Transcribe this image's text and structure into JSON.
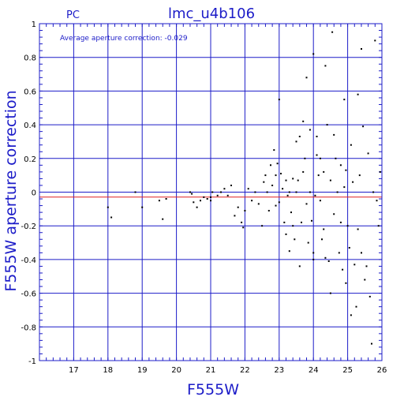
{
  "chart_data": {
    "type": "scatter",
    "title": "lmc_u4b106",
    "corner_label": "PC",
    "xlabel": "F555W",
    "ylabel": "F555W aperture correction",
    "annotation": "Average aperture correction: -0.029",
    "xlim": [
      16,
      26
    ],
    "ylim": [
      -1,
      1
    ],
    "x_ticks": [
      "17",
      "18",
      "19",
      "20",
      "21",
      "22",
      "23",
      "24",
      "25",
      "26"
    ],
    "y_ticks": [
      "1",
      "0.8",
      "0.6",
      "0.4",
      "0.2",
      "0",
      "-0.2",
      "-0.4",
      "-0.6",
      "-0.8",
      "-1"
    ],
    "grid": true,
    "reference_lines": [
      {
        "y": 0,
        "color": "#1c1cc8"
      },
      {
        "y": -0.029,
        "color": "#e02020"
      }
    ],
    "colors": {
      "grid": "#1c1cc8",
      "text": "#1c1cc8",
      "points": "#000000",
      "average_line": "#e02020"
    },
    "points": [
      [
        18.0,
        -0.09
      ],
      [
        18.1,
        -0.15
      ],
      [
        18.8,
        0.0
      ],
      [
        19.0,
        -0.09
      ],
      [
        19.5,
        -0.05
      ],
      [
        19.6,
        -0.16
      ],
      [
        19.7,
        -0.04
      ],
      [
        20.4,
        0.0
      ],
      [
        20.45,
        -0.01
      ],
      [
        20.5,
        -0.06
      ],
      [
        20.6,
        -0.09
      ],
      [
        20.7,
        -0.05
      ],
      [
        20.8,
        -0.03
      ],
      [
        20.9,
        -0.04
      ],
      [
        21.0,
        -0.03
      ],
      [
        21.0,
        -0.05
      ],
      [
        21.05,
        0.0
      ],
      [
        21.2,
        -0.02
      ],
      [
        21.3,
        0.0
      ],
      [
        21.4,
        0.02
      ],
      [
        21.5,
        -0.02
      ],
      [
        21.6,
        0.04
      ],
      [
        21.7,
        -0.14
      ],
      [
        21.8,
        -0.09
      ],
      [
        21.9,
        -0.18
      ],
      [
        21.95,
        -0.21
      ],
      [
        22.0,
        -0.11
      ],
      [
        22.1,
        0.02
      ],
      [
        22.2,
        -0.05
      ],
      [
        22.3,
        0.0
      ],
      [
        22.4,
        -0.07
      ],
      [
        22.5,
        -0.2
      ],
      [
        22.55,
        0.06
      ],
      [
        22.6,
        0.1
      ],
      [
        22.65,
        0.0
      ],
      [
        22.7,
        -0.11
      ],
      [
        22.75,
        0.16
      ],
      [
        22.8,
        0.04
      ],
      [
        22.85,
        0.25
      ],
      [
        22.9,
        -0.08
      ],
      [
        22.9,
        0.1
      ],
      [
        22.95,
        0.17
      ],
      [
        23.0,
        -0.06
      ],
      [
        23.0,
        0.55
      ],
      [
        23.05,
        0.11
      ],
      [
        23.1,
        0.02
      ],
      [
        23.15,
        -0.18
      ],
      [
        23.2,
        0.07
      ],
      [
        23.2,
        -0.25
      ],
      [
        23.25,
        -0.02
      ],
      [
        23.3,
        0.0
      ],
      [
        23.3,
        -0.35
      ],
      [
        23.35,
        -0.12
      ],
      [
        23.4,
        0.08
      ],
      [
        23.4,
        -0.2
      ],
      [
        23.45,
        -0.28
      ],
      [
        23.5,
        0.3
      ],
      [
        23.5,
        0.0
      ],
      [
        23.55,
        0.07
      ],
      [
        23.6,
        0.33
      ],
      [
        23.6,
        -0.44
      ],
      [
        23.65,
        -0.18
      ],
      [
        23.7,
        0.12
      ],
      [
        23.7,
        0.42
      ],
      [
        23.75,
        0.2
      ],
      [
        23.8,
        -0.07
      ],
      [
        23.8,
        0.68
      ],
      [
        23.85,
        -0.3
      ],
      [
        23.9,
        0.37
      ],
      [
        23.9,
        0.0
      ],
      [
        23.95,
        -0.17
      ],
      [
        24.0,
        -0.4
      ],
      [
        24.0,
        -0.36
      ],
      [
        24.05,
        -0.02
      ],
      [
        24.1,
        0.22
      ],
      [
        24.1,
        0.33
      ],
      [
        24.15,
        0.1
      ],
      [
        24.2,
        0.2
      ],
      [
        24.2,
        -0.05
      ],
      [
        24.25,
        -0.28
      ],
      [
        24.3,
        0.12
      ],
      [
        24.3,
        -0.22
      ],
      [
        24.35,
        0.75
      ],
      [
        24.4,
        0.4
      ],
      [
        24.45,
        -0.41
      ],
      [
        24.5,
        -0.6
      ],
      [
        24.5,
        0.07
      ],
      [
        24.55,
        0.95
      ],
      [
        24.6,
        -0.13
      ],
      [
        24.65,
        0.2
      ],
      [
        24.7,
        0.0
      ],
      [
        24.75,
        -0.36
      ],
      [
        24.8,
        0.16
      ],
      [
        24.85,
        -0.46
      ],
      [
        24.9,
        0.03
      ],
      [
        24.9,
        0.55
      ],
      [
        24.95,
        -0.54
      ],
      [
        25.0,
        -0.2
      ],
      [
        25.05,
        -0.33
      ],
      [
        25.1,
        -0.73
      ],
      [
        25.15,
        0.06
      ],
      [
        25.2,
        -0.43
      ],
      [
        25.25,
        -0.68
      ],
      [
        25.3,
        0.58
      ],
      [
        25.35,
        0.1
      ],
      [
        25.4,
        0.85
      ],
      [
        25.4,
        -0.36
      ],
      [
        25.45,
        0.39
      ],
      [
        25.5,
        -0.52
      ],
      [
        25.55,
        -0.44
      ],
      [
        25.6,
        0.23
      ],
      [
        25.65,
        -0.62
      ],
      [
        25.7,
        -0.9
      ],
      [
        25.75,
        0.0
      ],
      [
        25.8,
        0.9
      ],
      [
        25.85,
        -0.05
      ],
      [
        25.9,
        -0.2
      ],
      [
        25.95,
        0.12
      ],
      [
        24.0,
        0.82
      ],
      [
        24.35,
        -0.39
      ],
      [
        24.6,
        0.34
      ],
      [
        24.8,
        -0.18
      ],
      [
        24.95,
        0.13
      ],
      [
        25.1,
        0.28
      ],
      [
        25.3,
        -0.22
      ]
    ]
  }
}
